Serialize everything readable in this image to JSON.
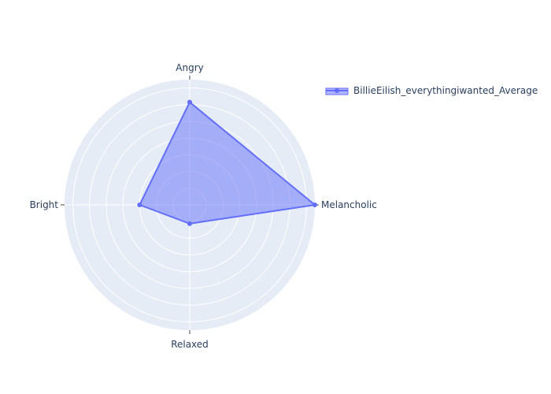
{
  "chart_data": {
    "type": "radar",
    "axes": [
      "Angry",
      "Melancholic",
      "Relaxed",
      "Bright"
    ],
    "series": [
      {
        "name": "BillieEilish_everythingiwanted_Average",
        "values": [
          0.82,
          1.0,
          0.15,
          0.4
        ]
      }
    ],
    "r_range": [
      0,
      1
    ],
    "grid": true,
    "legend_position": "top-right",
    "colors": {
      "polar_bg": "#e5ecf6",
      "grid": "#ffffff",
      "line": "#636efa",
      "fill": "rgba(99,110,250,0.5)",
      "text": "#2a3f5f"
    }
  }
}
